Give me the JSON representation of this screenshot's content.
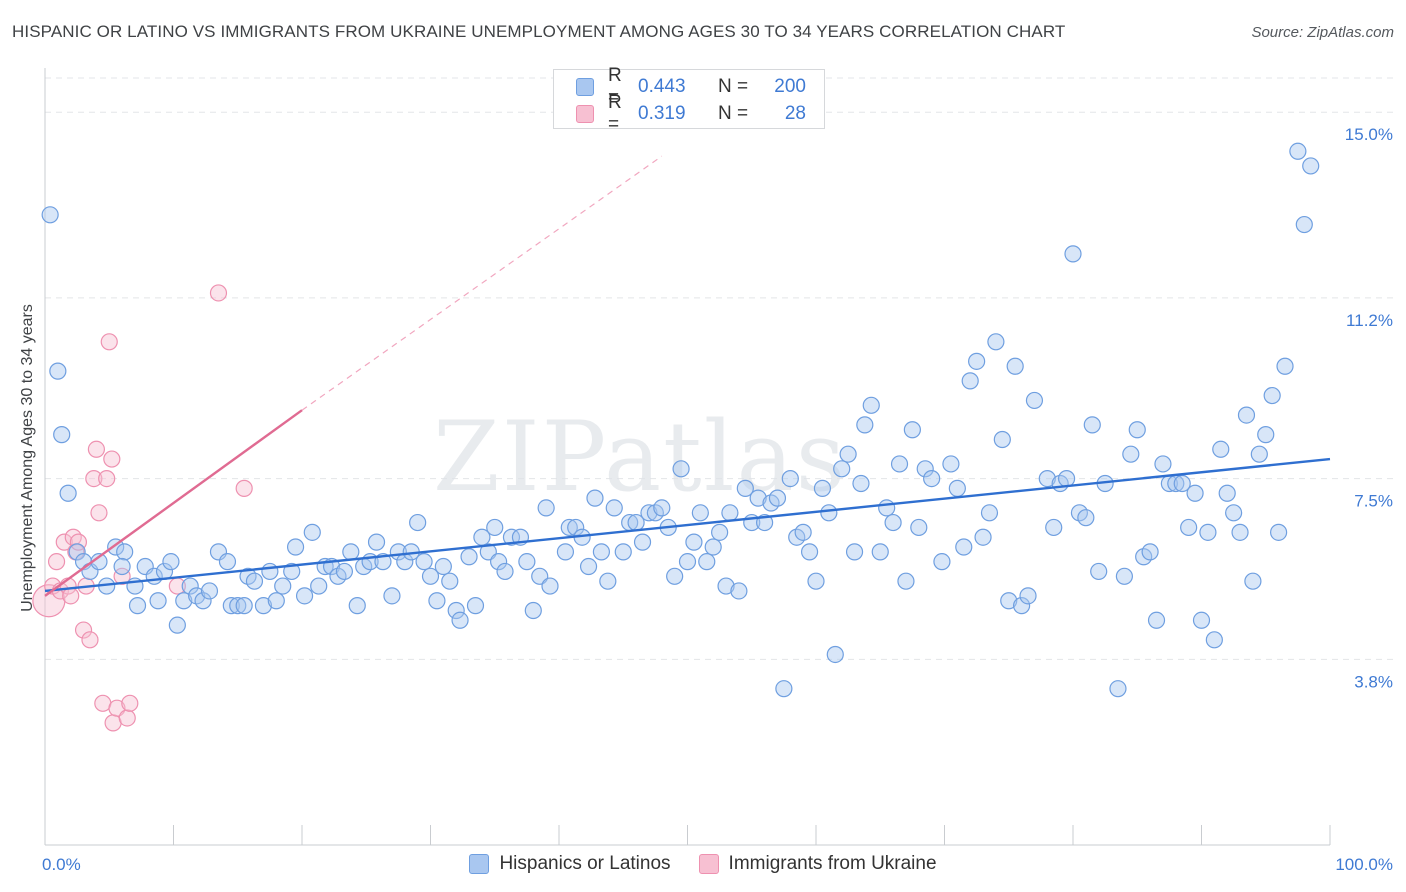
{
  "title": "HISPANIC OR LATINO VS IMMIGRANTS FROM UKRAINE UNEMPLOYMENT AMONG AGES 30 TO 34 YEARS CORRELATION CHART",
  "source": "Source: ZipAtlas.com",
  "watermark": "ZIPatlas",
  "legend": {
    "rows": [
      {
        "r_label": "R =",
        "r_value": "0.443",
        "n_label": "N =",
        "n_value": "200"
      },
      {
        "r_label": "R =",
        "r_value": "0.319",
        "n_label": "N =",
        "n_value": "28"
      }
    ]
  },
  "colors": {
    "blue_fill": "#a9c7f0",
    "blue_stroke": "#6f9fe0",
    "blue_line": "#2f6fd0",
    "pink_fill": "#f7c0d2",
    "pink_stroke": "#ee91b0",
    "pink_line": "#e06b92",
    "grid": "#e3e5e8",
    "axis_text": "#3f7ad3"
  },
  "chart_data": {
    "type": "scatter",
    "title": "HISPANIC OR LATINO VS IMMIGRANTS FROM UKRAINE UNEMPLOYMENT AMONG AGES 30 TO 34 YEARS CORRELATION CHART",
    "xlabel": "",
    "ylabel": "Unemployment Among Ages 30 to 34 years",
    "xlim": [
      0,
      100
    ],
    "ylim": [
      0,
      15.7
    ],
    "x_tick_labels": [
      "0.0%",
      "100.0%"
    ],
    "y_ticks": [
      3.8,
      7.5,
      11.2,
      15.0
    ],
    "y_tick_labels": [
      "3.8%",
      "7.5%",
      "11.2%",
      "15.0%"
    ],
    "grid": true,
    "legend_placement": "bottom",
    "series": [
      {
        "name": "Hispanics or Latinos",
        "color": "#a9c7f0",
        "trend": {
          "x": [
            0,
            100
          ],
          "y": [
            5.2,
            7.9
          ]
        },
        "points": [
          [
            0.4,
            12.9
          ],
          [
            1.0,
            9.7
          ],
          [
            1.3,
            8.4
          ],
          [
            1.8,
            7.2
          ],
          [
            2.5,
            6.0
          ],
          [
            3.0,
            5.8
          ],
          [
            3.5,
            5.6
          ],
          [
            4.2,
            5.8
          ],
          [
            4.8,
            5.3
          ],
          [
            5.5,
            6.1
          ],
          [
            6.2,
            6.0
          ],
          [
            6.0,
            5.7
          ],
          [
            7.0,
            5.3
          ],
          [
            7.2,
            4.9
          ],
          [
            7.8,
            5.7
          ],
          [
            8.5,
            5.5
          ],
          [
            8.8,
            5.0
          ],
          [
            9.3,
            5.6
          ],
          [
            9.8,
            5.8
          ],
          [
            10.3,
            4.5
          ],
          [
            10.8,
            5.0
          ],
          [
            11.3,
            5.3
          ],
          [
            11.8,
            5.1
          ],
          [
            12.3,
            5.0
          ],
          [
            12.8,
            5.2
          ],
          [
            13.5,
            6.0
          ],
          [
            14.2,
            5.8
          ],
          [
            14.5,
            4.9
          ],
          [
            15.0,
            4.9
          ],
          [
            15.5,
            4.9
          ],
          [
            15.8,
            5.5
          ],
          [
            16.3,
            5.4
          ],
          [
            17.0,
            4.9
          ],
          [
            17.5,
            5.6
          ],
          [
            18.0,
            5.0
          ],
          [
            18.5,
            5.3
          ],
          [
            19.2,
            5.6
          ],
          [
            19.5,
            6.1
          ],
          [
            20.2,
            5.1
          ],
          [
            20.8,
            6.4
          ],
          [
            21.3,
            5.3
          ],
          [
            21.8,
            5.7
          ],
          [
            22.3,
            5.7
          ],
          [
            22.8,
            5.5
          ],
          [
            23.3,
            5.6
          ],
          [
            23.8,
            6.0
          ],
          [
            24.3,
            4.9
          ],
          [
            24.8,
            5.7
          ],
          [
            25.3,
            5.8
          ],
          [
            25.8,
            6.2
          ],
          [
            26.3,
            5.8
          ],
          [
            27.0,
            5.1
          ],
          [
            27.5,
            6.0
          ],
          [
            28.0,
            5.8
          ],
          [
            28.5,
            6.0
          ],
          [
            29.0,
            6.6
          ],
          [
            29.5,
            5.8
          ],
          [
            30.0,
            5.5
          ],
          [
            30.5,
            5.0
          ],
          [
            31.0,
            5.7
          ],
          [
            31.5,
            5.4
          ],
          [
            32.0,
            4.8
          ],
          [
            32.3,
            4.6
          ],
          [
            33.0,
            5.9
          ],
          [
            33.5,
            4.9
          ],
          [
            34.0,
            6.3
          ],
          [
            34.5,
            6.0
          ],
          [
            35.0,
            6.5
          ],
          [
            35.3,
            5.8
          ],
          [
            35.8,
            5.6
          ],
          [
            36.3,
            6.3
          ],
          [
            37.0,
            6.3
          ],
          [
            37.5,
            5.8
          ],
          [
            38.0,
            4.8
          ],
          [
            38.5,
            5.5
          ],
          [
            39.0,
            6.9
          ],
          [
            39.3,
            5.3
          ],
          [
            40.5,
            6.0
          ],
          [
            40.8,
            6.5
          ],
          [
            41.3,
            6.5
          ],
          [
            41.8,
            6.3
          ],
          [
            42.3,
            5.7
          ],
          [
            42.8,
            7.1
          ],
          [
            43.3,
            6.0
          ],
          [
            43.8,
            5.4
          ],
          [
            44.3,
            6.9
          ],
          [
            45.0,
            6.0
          ],
          [
            45.5,
            6.6
          ],
          [
            46.0,
            6.6
          ],
          [
            46.5,
            6.2
          ],
          [
            47.0,
            6.8
          ],
          [
            47.5,
            6.8
          ],
          [
            48.0,
            6.9
          ],
          [
            48.5,
            6.5
          ],
          [
            49.0,
            5.5
          ],
          [
            49.5,
            7.7
          ],
          [
            50.0,
            5.8
          ],
          [
            50.5,
            6.2
          ],
          [
            51.0,
            6.8
          ],
          [
            51.5,
            5.8
          ],
          [
            52.0,
            6.1
          ],
          [
            52.5,
            6.4
          ],
          [
            53.0,
            5.3
          ],
          [
            53.3,
            6.8
          ],
          [
            54.0,
            5.2
          ],
          [
            54.5,
            7.3
          ],
          [
            55.0,
            6.6
          ],
          [
            55.5,
            7.1
          ],
          [
            56.0,
            6.6
          ],
          [
            56.5,
            7.0
          ],
          [
            57.0,
            7.1
          ],
          [
            57.5,
            3.2
          ],
          [
            58.0,
            7.5
          ],
          [
            58.5,
            6.3
          ],
          [
            59.0,
            6.4
          ],
          [
            59.5,
            6.0
          ],
          [
            60.0,
            5.4
          ],
          [
            60.5,
            7.3
          ],
          [
            61.0,
            6.8
          ],
          [
            61.5,
            3.9
          ],
          [
            62.0,
            7.7
          ],
          [
            62.5,
            8.0
          ],
          [
            63.0,
            6.0
          ],
          [
            63.5,
            7.4
          ],
          [
            63.8,
            8.6
          ],
          [
            64.3,
            9.0
          ],
          [
            65.0,
            6.0
          ],
          [
            65.5,
            6.9
          ],
          [
            66.0,
            6.6
          ],
          [
            66.5,
            7.8
          ],
          [
            67.0,
            5.4
          ],
          [
            67.5,
            8.5
          ],
          [
            68.0,
            6.5
          ],
          [
            68.5,
            7.7
          ],
          [
            69.0,
            7.5
          ],
          [
            69.8,
            5.8
          ],
          [
            70.5,
            7.8
          ],
          [
            71.0,
            7.3
          ],
          [
            71.5,
            6.1
          ],
          [
            72.0,
            9.5
          ],
          [
            72.5,
            9.9
          ],
          [
            73.0,
            6.3
          ],
          [
            73.5,
            6.8
          ],
          [
            74.0,
            10.3
          ],
          [
            74.5,
            8.3
          ],
          [
            75.0,
            5.0
          ],
          [
            75.5,
            9.8
          ],
          [
            76.0,
            4.9
          ],
          [
            76.5,
            5.1
          ],
          [
            77.0,
            9.1
          ],
          [
            78.0,
            7.5
          ],
          [
            78.5,
            6.5
          ],
          [
            79.0,
            7.4
          ],
          [
            79.5,
            7.5
          ],
          [
            80.0,
            12.1
          ],
          [
            80.5,
            6.8
          ],
          [
            81.0,
            6.7
          ],
          [
            81.5,
            8.6
          ],
          [
            82.0,
            5.6
          ],
          [
            82.5,
            7.4
          ],
          [
            83.5,
            3.2
          ],
          [
            84.0,
            5.5
          ],
          [
            84.5,
            8.0
          ],
          [
            85.0,
            8.5
          ],
          [
            85.5,
            5.9
          ],
          [
            86.0,
            6.0
          ],
          [
            86.5,
            4.6
          ],
          [
            87.0,
            7.8
          ],
          [
            87.5,
            7.4
          ],
          [
            88.0,
            7.4
          ],
          [
            88.5,
            7.4
          ],
          [
            89.0,
            6.5
          ],
          [
            89.5,
            7.2
          ],
          [
            90.0,
            4.6
          ],
          [
            90.5,
            6.4
          ],
          [
            91.0,
            4.2
          ],
          [
            91.5,
            8.1
          ],
          [
            92.0,
            7.2
          ],
          [
            92.5,
            6.8
          ],
          [
            93.0,
            6.4
          ],
          [
            93.5,
            8.8
          ],
          [
            94.0,
            5.4
          ],
          [
            94.5,
            8.0
          ],
          [
            95.0,
            8.4
          ],
          [
            95.5,
            9.2
          ],
          [
            96.0,
            6.4
          ],
          [
            96.5,
            9.8
          ],
          [
            97.5,
            14.2
          ],
          [
            98.0,
            12.7
          ],
          [
            98.5,
            13.9
          ]
        ]
      },
      {
        "name": "Immigrants from Ukraine",
        "color": "#f7c0d2",
        "trend": {
          "x": [
            0,
            20
          ],
          "y": [
            5.1,
            8.9
          ]
        },
        "trend_extension": {
          "x": [
            20,
            48
          ],
          "y": [
            8.9,
            14.1
          ]
        },
        "points": [
          [
            0.3,
            5.0
          ],
          [
            0.6,
            5.3
          ],
          [
            0.9,
            5.8
          ],
          [
            1.2,
            5.2
          ],
          [
            1.5,
            6.2
          ],
          [
            1.8,
            5.3
          ],
          [
            2.0,
            5.1
          ],
          [
            2.2,
            6.3
          ],
          [
            2.4,
            6.0
          ],
          [
            2.6,
            6.2
          ],
          [
            3.0,
            4.4
          ],
          [
            3.2,
            5.3
          ],
          [
            3.5,
            4.2
          ],
          [
            3.8,
            7.5
          ],
          [
            4.0,
            8.1
          ],
          [
            4.2,
            6.8
          ],
          [
            4.5,
            2.9
          ],
          [
            4.8,
            7.5
          ],
          [
            5.0,
            10.3
          ],
          [
            5.2,
            7.9
          ],
          [
            5.3,
            2.5
          ],
          [
            5.6,
            2.8
          ],
          [
            6.0,
            5.5
          ],
          [
            6.4,
            2.6
          ],
          [
            6.6,
            2.9
          ],
          [
            10.3,
            5.3
          ],
          [
            13.5,
            11.3
          ],
          [
            15.5,
            7.3
          ]
        ]
      }
    ]
  }
}
